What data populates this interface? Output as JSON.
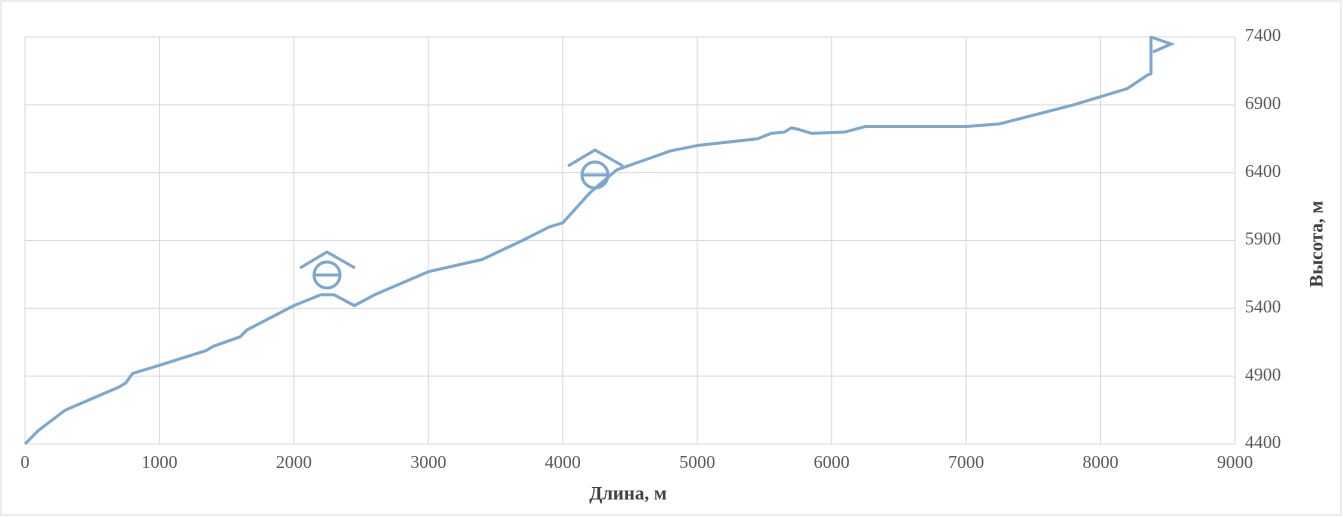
{
  "chart_data": {
    "type": "line",
    "x_label": "Длина, м",
    "y_label": "Высота, м",
    "series": [
      {
        "color": "#7ba7d1",
        "x": [
          0,
          100,
          300,
          700,
          750,
          800,
          1000,
          1350,
          1400,
          1600,
          1650,
          2000,
          2200,
          2300,
          2450,
          2600,
          3000,
          3400,
          3700,
          3900,
          4000,
          4200,
          4400,
          4800,
          5000,
          5450,
          5550,
          5650,
          5700,
          5750,
          5850,
          6100,
          6250,
          7000,
          7250,
          7800,
          8200,
          8350,
          8380
        ],
        "values": [
          4400,
          4500,
          4650,
          4820,
          4850,
          4920,
          4980,
          5090,
          5120,
          5190,
          5240,
          5420,
          5500,
          5500,
          5420,
          5500,
          5670,
          5760,
          5900,
          6000,
          6030,
          6250,
          6420,
          6560,
          6600,
          6650,
          6690,
          6700,
          6730,
          6720,
          6690,
          6700,
          6740,
          6740,
          6760,
          6900,
          7020,
          7120,
          7130
        ]
      }
    ],
    "xlim": [
      0,
      9000
    ],
    "xticks": [
      0,
      1000,
      2000,
      3000,
      4000,
      5000,
      6000,
      7000,
      8000,
      9000
    ],
    "ylim": [
      4400,
      7400
    ],
    "yticks": [
      4400,
      4900,
      5400,
      5900,
      6400,
      6900,
      7400
    ],
    "grid": true
  }
}
